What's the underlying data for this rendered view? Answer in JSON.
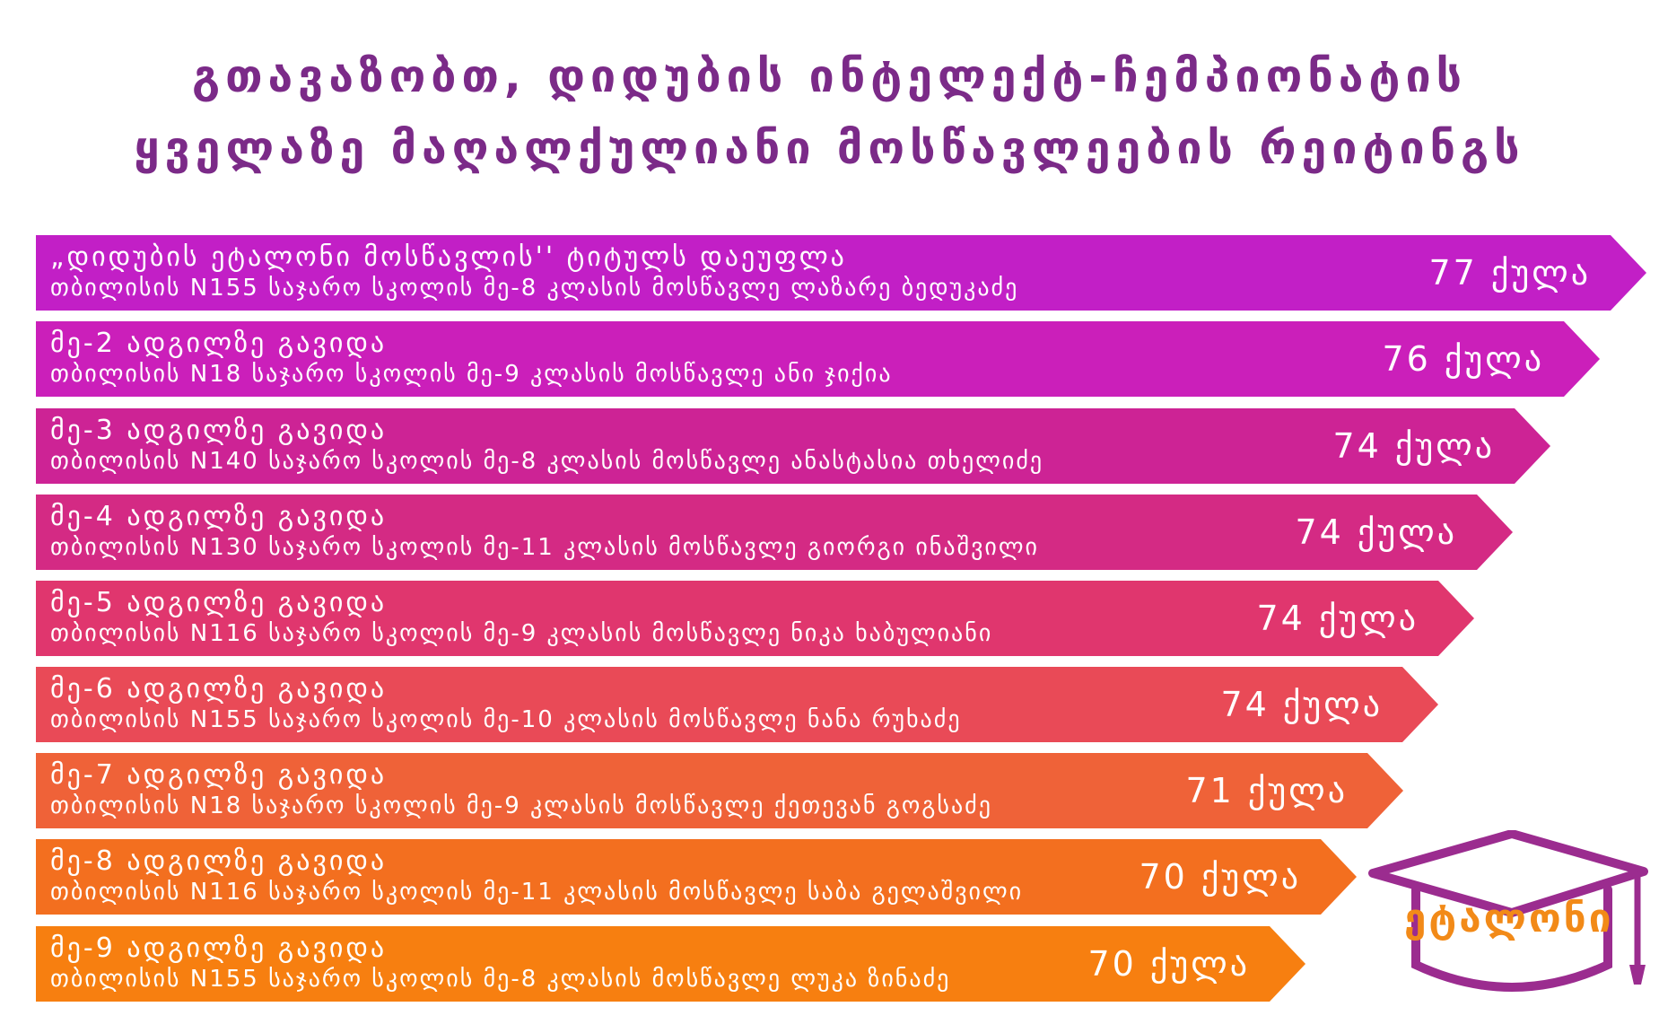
{
  "title": {
    "line1": "გთავაზობთ, დიდუბის ინტელექტ-ჩემპიონატის",
    "line2": "ყველაზე მაღალქულიანი მოსწავლეების რეიტინგს"
  },
  "rows": [
    {
      "line1": "„დიდუბის ეტალონი მოსწავლის'' ტიტულს დაეუფლა",
      "line2": "თბილისის N155 საჯარო სკოლის მე-8 კლასის მოსწავლე ლაზარე ბედუკაძე",
      "points": "77 ქულა",
      "color": "#c21fc6"
    },
    {
      "line1": "მე-2 ადგილზე გავიდა",
      "line2": "თბილისის N18 საჯარო სკოლის მე-9 კლასის მოსწავლე ანი ჯიქია",
      "points": "76 ქულა",
      "color": "#cb1fba"
    },
    {
      "line1": "მე-3 ადგილზე გავიდა",
      "line2": "თბილისის N140 საჯარო სკოლის მე-8 კლასის მოსწავლე ანასტასია თხელიძე",
      "points": "74 ქულა",
      "color": "#cd2395"
    },
    {
      "line1": "მე-4 ადგილზე გავიდა",
      "line2": "თბილისის N130 საჯარო სკოლის მე-11 კლასის მოსწავლე გიორგი ინაშვილი",
      "points": "74 ქულა",
      "color": "#d42a84"
    },
    {
      "line1": "მე-5 ადგილზე გავიდა",
      "line2": "თბილისის N116 საჯარო სკოლის მე-9 კლასის მოსწავლე ნიკა ხაბულიანი",
      "points": "74 ქულა",
      "color": "#e0366e"
    },
    {
      "line1": "მე-6 ადგილზე გავიდა",
      "line2": "თბილისის N155 საჯარო სკოლის მე-10 კლასის მოსწავლე ნანა რუხაძე",
      "points": "74 ქულა",
      "color": "#e94a57"
    },
    {
      "line1": "მე-7 ადგილზე გავიდა",
      "line2": "თბილისის N18 საჯარო სკოლის მე-9 კლასის მოსწავლე ქეთევან გოგსაძე",
      "points": "71 ქულა",
      "color": "#ef6238"
    },
    {
      "line1": "მე-8 ადგილზე გავიდა",
      "line2": "თბილისის N116 საჯარო სკოლის მე-11 კლასის მოსწავლე საბა გელაშვილი",
      "points": "70 ქულა",
      "color": "#f36f1f"
    },
    {
      "line1": "მე-9 ადგილზე გავიდა",
      "line2": "თბილისის N155 საჯარო სკოლის მე-8 კლასის მოსწავლე ლუკა ზინაძე",
      "points": "70 ქულა",
      "color": "#f77f10"
    }
  ],
  "logo": {
    "text": "ეტალონი",
    "cap_color": "#9b2c8f",
    "text_color": "#f28a18"
  }
}
